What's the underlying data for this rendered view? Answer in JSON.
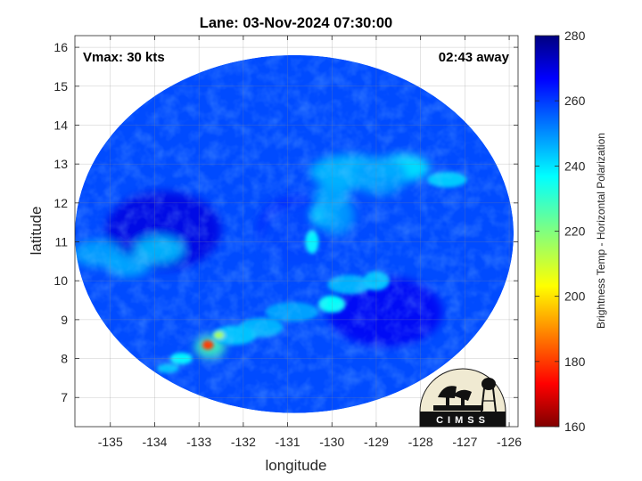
{
  "chart_data": {
    "type": "heatmap",
    "title": "Lane: 03-Nov-2024 07:30:00",
    "xlabel": "longitude",
    "ylabel": "latitude",
    "xlim": [
      -135.8,
      -125.8
    ],
    "ylim": [
      6.25,
      16.3
    ],
    "x_ticks": [
      -135,
      -134,
      -133,
      -132,
      -131,
      -130,
      -129,
      -128,
      -127,
      -126
    ],
    "y_ticks": [
      7,
      8,
      9,
      10,
      11,
      12,
      13,
      14,
      15,
      16
    ],
    "grid": true,
    "annotations": {
      "top_left": "Vmax: 30 kts",
      "top_right": "02:43 away"
    },
    "colorbar": {
      "label": "Brightness Temp - Horizontal Polarization",
      "range": [
        160,
        280
      ],
      "ticks": [
        160,
        180,
        200,
        220,
        240,
        260,
        280
      ],
      "colormap": "jet"
    },
    "swath": {
      "center": [
        -130.85,
        11.2
      ],
      "radius_lon": 4.95,
      "radius_lat": 4.6,
      "background_value": 258
    },
    "features": [
      {
        "lon": -130.8,
        "lat": 11.3,
        "value": 262,
        "rlon": 0.9,
        "rlat": 0.9
      },
      {
        "lon": -130.4,
        "lat": 11.0,
        "value": 258,
        "rlon": 1.2,
        "rlat": 1.0
      },
      {
        "lon": -133.8,
        "lat": 11.3,
        "value": 270,
        "rlon": 1.3,
        "rlat": 1.0
      },
      {
        "lon": -128.8,
        "lat": 9.2,
        "value": 268,
        "rlon": 1.3,
        "rlat": 0.9
      },
      {
        "lon": -135.3,
        "lat": 10.7,
        "value": 247,
        "rlon": 0.55,
        "rlat": 0.35
      },
      {
        "lon": -133.9,
        "lat": 10.8,
        "value": 243,
        "rlon": 0.55,
        "rlat": 0.35
      },
      {
        "lon": -134.6,
        "lat": 10.4,
        "value": 246,
        "rlon": 0.5,
        "rlat": 0.3
      },
      {
        "lon": -129.6,
        "lat": 12.8,
        "value": 244,
        "rlon": 0.9,
        "rlat": 0.45
      },
      {
        "lon": -128.4,
        "lat": 12.9,
        "value": 238,
        "rlon": 0.6,
        "rlat": 0.35
      },
      {
        "lon": -127.4,
        "lat": 12.6,
        "value": 243,
        "rlon": 0.45,
        "rlat": 0.2
      },
      {
        "lon": -130.15,
        "lat": 11.7,
        "value": 238,
        "rlon": 0.3,
        "rlat": 0.3
      },
      {
        "lon": -130.0,
        "lat": 12.2,
        "value": 246,
        "rlon": 0.4,
        "rlat": 0.3
      },
      {
        "lon": -130.45,
        "lat": 11.0,
        "value": 238,
        "rlon": 0.15,
        "rlat": 0.3
      },
      {
        "lon": -130.0,
        "lat": 9.4,
        "value": 236,
        "rlon": 0.3,
        "rlat": 0.22
      },
      {
        "lon": -129.6,
        "lat": 9.9,
        "value": 246,
        "rlon": 0.5,
        "rlat": 0.25
      },
      {
        "lon": -129.0,
        "lat": 10.0,
        "value": 244,
        "rlon": 0.3,
        "rlat": 0.25
      },
      {
        "lon": -130.9,
        "lat": 9.2,
        "value": 248,
        "rlon": 0.6,
        "rlat": 0.25
      },
      {
        "lon": -131.6,
        "lat": 8.8,
        "value": 246,
        "rlon": 0.5,
        "rlat": 0.25
      },
      {
        "lon": -132.2,
        "lat": 8.6,
        "value": 244,
        "rlon": 0.5,
        "rlat": 0.25
      },
      {
        "lon": -132.75,
        "lat": 8.3,
        "value": 228,
        "rlon": 0.35,
        "rlat": 0.3
      },
      {
        "lon": -132.8,
        "lat": 8.35,
        "value": 180,
        "rlon": 0.13,
        "rlat": 0.12
      },
      {
        "lon": -132.55,
        "lat": 8.6,
        "value": 215,
        "rlon": 0.12,
        "rlat": 0.1
      },
      {
        "lon": -133.4,
        "lat": 8.0,
        "value": 238,
        "rlon": 0.25,
        "rlat": 0.15
      },
      {
        "lon": -133.7,
        "lat": 7.75,
        "value": 244,
        "rlon": 0.25,
        "rlat": 0.12
      },
      {
        "lon": -129.9,
        "lat": 11.7,
        "value": 248,
        "rlon": 0.4,
        "rlat": 0.5
      },
      {
        "lon": -128.9,
        "lat": 12.7,
        "value": 248,
        "rlon": 0.6,
        "rlat": 0.5
      }
    ],
    "logo": {
      "text": "CIMSS"
    }
  }
}
